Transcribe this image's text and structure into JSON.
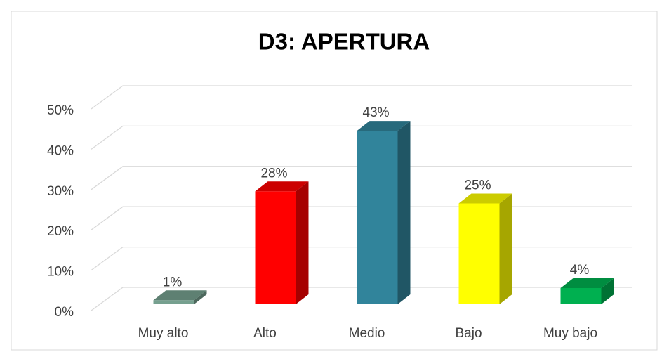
{
  "chart_data": {
    "type": "bar3d",
    "title": "D3: APERTURA",
    "categories": [
      "Muy alto",
      "Alto",
      "Medio",
      "Bajo",
      "Muy bajo"
    ],
    "values": [
      1,
      28,
      43,
      25,
      4
    ],
    "value_labels": [
      "1%",
      "28%",
      "43%",
      "25%",
      "4%"
    ],
    "colors": [
      "#76a08f",
      "#ff0000",
      "#31849b",
      "#ffff00",
      "#00b050"
    ],
    "ylim": [
      0,
      50
    ],
    "yticks": [
      {
        "value": 0,
        "label": "0%"
      },
      {
        "value": 10,
        "label": "10%"
      },
      {
        "value": 20,
        "label": "20%"
      },
      {
        "value": 30,
        "label": "30%"
      },
      {
        "value": 40,
        "label": "40%"
      },
      {
        "value": 50,
        "label": "50%"
      }
    ],
    "grid": true
  }
}
